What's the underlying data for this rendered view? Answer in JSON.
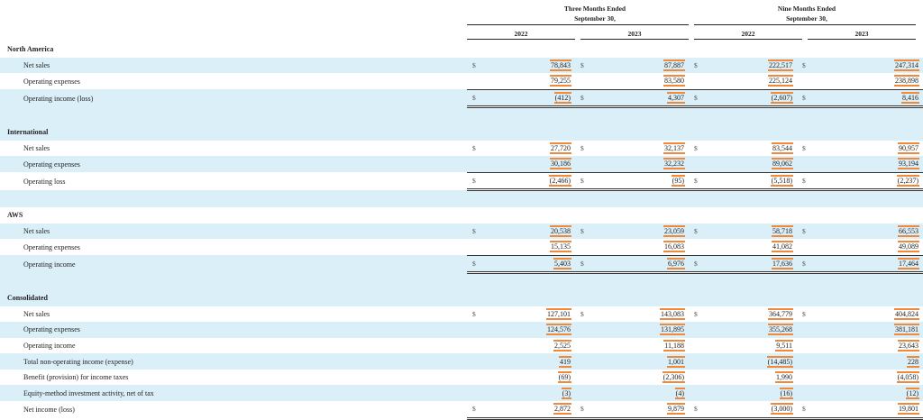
{
  "header": {
    "three_months_label_1": "Three Months Ended",
    "three_months_label_2": "September 30,",
    "nine_months_label_1": "Nine Months Ended",
    "nine_months_label_2": "September 30,",
    "years": [
      "2022",
      "2023",
      "2022",
      "2023"
    ]
  },
  "currency_symbol": "$",
  "sections": [
    {
      "name": "North America",
      "rows": [
        {
          "label": "Net sales",
          "values": [
            "78,843",
            "87,887",
            "222,517",
            "247,314"
          ],
          "currency": true
        },
        {
          "label": "Operating expenses",
          "values": [
            "79,255",
            "83,580",
            "225,124",
            "238,898"
          ],
          "currency": false
        },
        {
          "label": "Operating income (loss)",
          "values": [
            "(412)",
            "4,307",
            "(2,607)",
            "8,416"
          ],
          "currency": true
        }
      ]
    },
    {
      "name": "International",
      "rows": [
        {
          "label": "Net sales",
          "values": [
            "27,720",
            "32,137",
            "83,544",
            "90,957"
          ],
          "currency": true
        },
        {
          "label": "Operating expenses",
          "values": [
            "30,186",
            "32,232",
            "89,062",
            "93,194"
          ],
          "currency": false
        },
        {
          "label": "Operating loss",
          "values": [
            "(2,466)",
            "(95)",
            "(5,518)",
            "(2,237)"
          ],
          "currency": true
        }
      ]
    },
    {
      "name": "AWS",
      "rows": [
        {
          "label": "Net sales",
          "values": [
            "20,538",
            "23,059",
            "58,718",
            "66,553"
          ],
          "currency": true
        },
        {
          "label": "Operating expenses",
          "values": [
            "15,135",
            "16,083",
            "41,082",
            "49,089"
          ],
          "currency": false
        },
        {
          "label": "Operating income",
          "values": [
            "5,403",
            "6,976",
            "17,636",
            "17,464"
          ],
          "currency": true
        }
      ]
    },
    {
      "name": "Consolidated",
      "rows": [
        {
          "label": "Net sales",
          "values": [
            "127,101",
            "143,083",
            "364,779",
            "404,824"
          ],
          "currency": true
        },
        {
          "label": "Operating expenses",
          "values": [
            "124,576",
            "131,895",
            "355,268",
            "381,181"
          ],
          "currency": false
        },
        {
          "label": "Operating income",
          "values": [
            "2,525",
            "11,188",
            "9,511",
            "23,643"
          ],
          "currency": false
        },
        {
          "label": "Total non-operating income (expense)",
          "values": [
            "419",
            "1,001",
            "(14,485)",
            "228"
          ],
          "currency": false
        },
        {
          "label": "Benefit (provision) for income taxes",
          "values": [
            "(69)",
            "(2,306)",
            "1,990",
            "(4,058)"
          ],
          "currency": false
        },
        {
          "label": "Equity-method investment activity, net of tax",
          "values": [
            "(3)",
            "(4)",
            "(16)",
            "(12)"
          ],
          "currency": false
        },
        {
          "label": "Net income (loss)",
          "values": [
            "2,872",
            "9,879",
            "(3,000)",
            "19,801"
          ],
          "currency": true
        }
      ]
    }
  ],
  "colors": {
    "row_highlight": "#dbeff9",
    "value_highlight": "#f08a3a"
  }
}
